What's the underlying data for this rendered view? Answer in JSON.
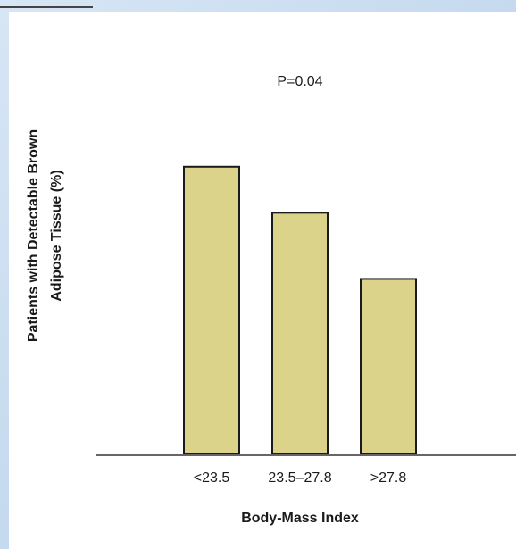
{
  "chart_data": {
    "type": "bar",
    "categories": [
      "<23.5",
      "23.5–27.8",
      ">27.8"
    ],
    "values": [
      100,
      84,
      61
    ],
    "ylim": [
      0,
      117
    ],
    "annotation": "P=0.04",
    "xlabel": "Body-Mass Index",
    "ylabel_line1": "Patients with Detectable Brown",
    "ylabel_line2": "Adipose Tissue (%)",
    "grid": false,
    "legend": "none",
    "colors": {
      "bar_fill": "#dcd38a",
      "bar_stroke": "#1a1a1a",
      "axis": "#666666",
      "background_frame": "#cfe0f2"
    }
  }
}
